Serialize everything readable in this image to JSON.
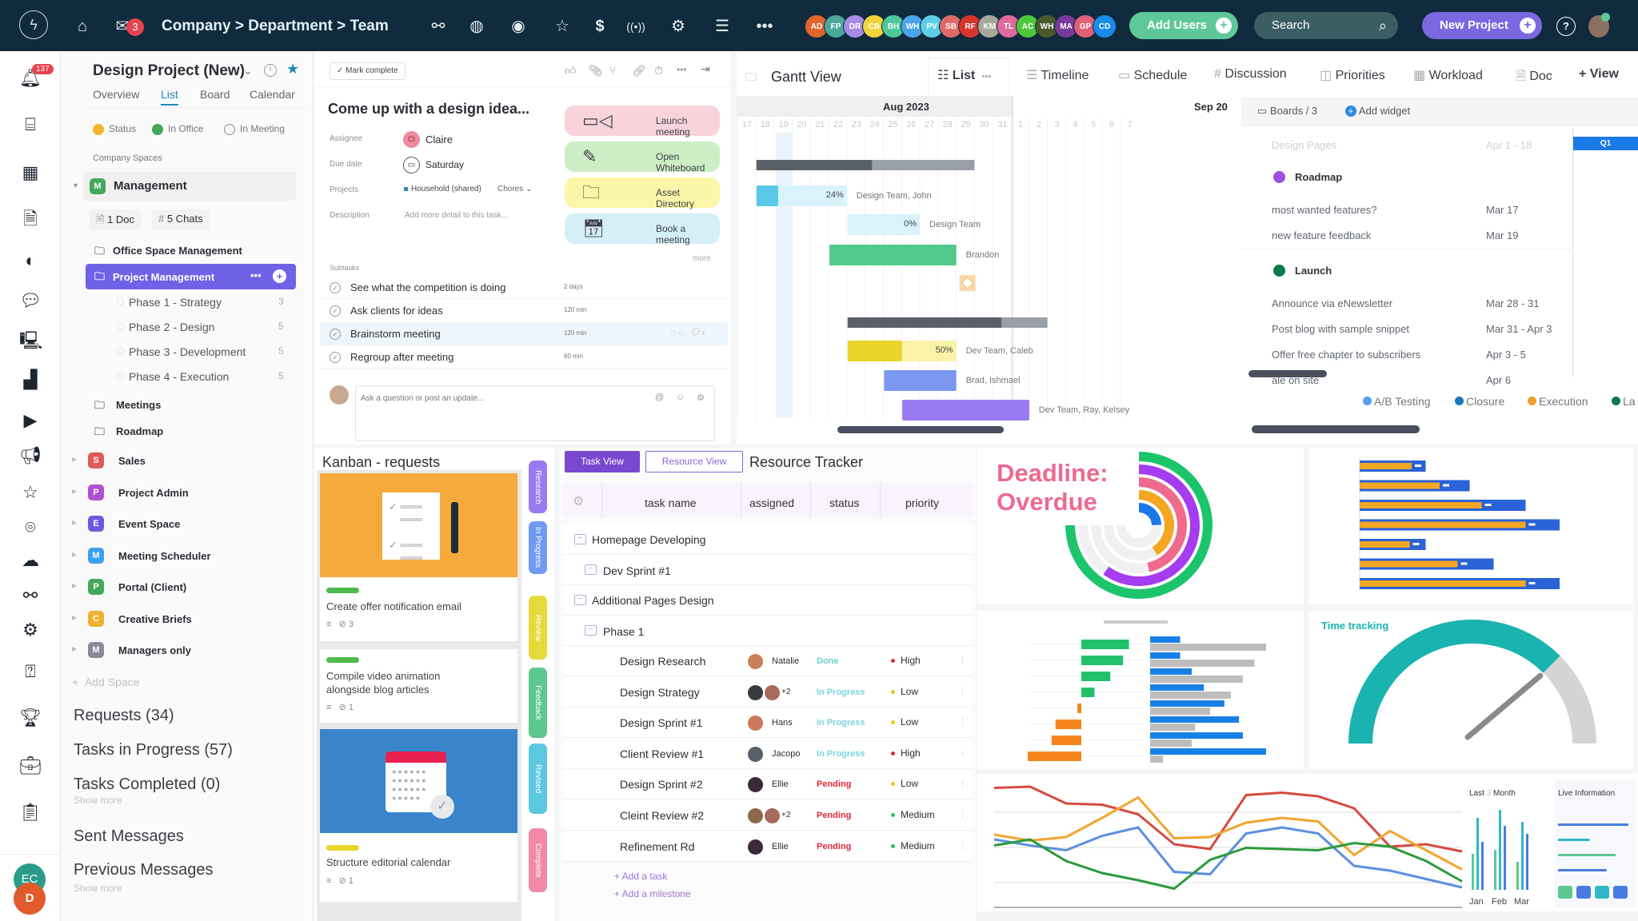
{
  "topbar": {
    "mail_badge": "3",
    "breadcrumb": [
      "Company",
      ">",
      "Department",
      ">",
      "Team"
    ],
    "icons": [
      "share-icon",
      "globe-icon",
      "eye-icon",
      "star-icon",
      "dollar-icon",
      "broadcast-icon",
      "gear-icon",
      "menu-icon",
      "more-icon"
    ],
    "avatars": [
      {
        "initials": "AD",
        "color": "#e0662e"
      },
      {
        "initials": "FP",
        "color": "#4aa99a"
      },
      {
        "initials": "DR",
        "color": "#a78be8"
      },
      {
        "initials": "CB",
        "color": "#f0d43a"
      },
      {
        "initials": "BH",
        "color": "#4cc89a"
      },
      {
        "initials": "WH",
        "color": "#4aa4e8"
      },
      {
        "initials": "PV",
        "color": "#5ccfe6"
      },
      {
        "initials": "SB",
        "color": "#e06a6a"
      },
      {
        "initials": "RF",
        "color": "#d8342c"
      },
      {
        "initials": "KM",
        "color": "#a8a89a"
      },
      {
        "initials": "TL",
        "color": "#e06a9a"
      },
      {
        "initials": "AC",
        "color": "#4ec83a"
      },
      {
        "initials": "WH",
        "color": "#4a5a2a"
      },
      {
        "initials": "MA",
        "color": "#7a3a9a"
      },
      {
        "initials": "GP",
        "color": "#e0607a"
      },
      {
        "initials": "CD",
        "color": "#1a8ae8"
      }
    ],
    "add_users": "Add Users",
    "search_placeholder": "Search",
    "new_project": "New Project",
    "help": "?"
  },
  "rail": {
    "notification_badge": "137",
    "user_initials": [
      "EC",
      "D"
    ]
  },
  "sidebar": {
    "project_title": "Design Project (New)",
    "tabs": [
      "Overview",
      "List",
      "Board",
      "Calendar"
    ],
    "active_tab": "List",
    "statuses": [
      {
        "label": "Status",
        "color": "#f5b52e"
      },
      {
        "label": "In Office",
        "color": "#43a85a"
      },
      {
        "label": "In Meeting",
        "color": "hollow"
      }
    ],
    "section_label": "Company Spaces",
    "management": {
      "badge": "M",
      "label": "Management",
      "doc_chip": "1 Doc",
      "chat_chip": "5 Chats"
    },
    "folders": [
      "Office Space Management",
      "Project Management"
    ],
    "phases": [
      {
        "label": "Phase 1 - Strategy",
        "count": "3"
      },
      {
        "label": "Phase 2 - Design",
        "count": "5"
      },
      {
        "label": "Phase 3 - Development",
        "count": "5"
      },
      {
        "label": "Phase 4 - Execution",
        "count": "5"
      }
    ],
    "folders2": [
      "Meetings",
      "Roadmap"
    ],
    "spaces": [
      {
        "badge": "S",
        "label": "Sales",
        "color": "#e05a5a"
      },
      {
        "badge": "P",
        "label": "Project Admin",
        "color": "#b050d0"
      },
      {
        "badge": "E",
        "label": "Event Space",
        "color": "#6a5ae0"
      },
      {
        "badge": "M",
        "label": "Meeting Scheduler",
        "color": "#3aa0f0"
      },
      {
        "badge": "P",
        "label": "Portal (Client)",
        "color": "#43a85a"
      },
      {
        "badge": "C",
        "label": "Creative Briefs",
        "color": "#f0b030"
      },
      {
        "badge": "M",
        "label": "Managers only",
        "color": "#8a8a94"
      }
    ],
    "add_space": "Add Space",
    "lists": [
      "Requests (34)",
      "Tasks in Progress (57)",
      "Tasks Completed (0)",
      "Sent Messages",
      "Previous Messages"
    ],
    "show_more": "Show more"
  },
  "task": {
    "mark_complete": "✓ Mark complete",
    "title": "Come up with a design idea...",
    "fields": {
      "assignee_label": "Assignee",
      "assignee_initials": "CI",
      "assignee": "Claire",
      "due_label": "Due date",
      "due": "Saturday",
      "projects_label": "Projects",
      "project": "Household (shared)",
      "project_section": "Chores",
      "description_label": "Description",
      "description_placeholder": "Add more detail to this task..."
    },
    "actions": [
      {
        "label": "Launch meeting",
        "icon": "video-icon",
        "color": "#f8d3dc"
      },
      {
        "label": "Open Whiteboard",
        "icon": "pen-icon",
        "color": "#cdeec4"
      },
      {
        "label": "Asset Directory",
        "icon": "folder-icon",
        "color": "#fbf5a8"
      },
      {
        "label": "Book a meeting",
        "icon": "calendar-icon",
        "color": "#d5eff9"
      }
    ],
    "more": "more",
    "subtasks_label": "Subtasks",
    "subtasks": [
      {
        "name": "See what the competition is doing",
        "duration": "2 days"
      },
      {
        "name": "Ask clients for ideas",
        "duration": "120 min"
      },
      {
        "name": "Brainstorm meeting",
        "duration": "120 min"
      },
      {
        "name": "Regroup after meeting",
        "duration": "60 min"
      }
    ],
    "comment_placeholder": "Ask a question or post an update..."
  },
  "views": {
    "title": "Gantt View",
    "tabs": [
      "List",
      "Timeline",
      "Schedule",
      "Discussion",
      "Priorities",
      "Workload",
      "Doc"
    ],
    "add_view": "+ View"
  },
  "gantt": {
    "months": [
      "Aug 2023",
      "Sep 20"
    ],
    "days": [
      "17",
      "18",
      "19",
      "20",
      "21",
      "22",
      "23",
      "24",
      "25",
      "26",
      "27",
      "28",
      "29",
      "30",
      "31",
      "1",
      "2",
      "3",
      "4",
      "5",
      "6",
      "7"
    ],
    "today": "19",
    "bars": [
      {
        "type": "group",
        "start": 1,
        "end": 12,
        "progress": 0.53
      },
      {
        "type": "task",
        "start": 1,
        "end": 5,
        "progress": 0.24,
        "label": "24%",
        "assignee": "Design Team, John",
        "color": "#5bc8e8",
        "light": "#d8f3fb"
      },
      {
        "type": "task",
        "start": 6,
        "end": 9,
        "progress": 0,
        "label": "0%",
        "assignee": "Design Team",
        "color": "#5bc8e8",
        "light": "#d8f3fb"
      },
      {
        "type": "task",
        "start": 5,
        "end": 11,
        "progress": 1,
        "label": "",
        "assignee": "Brandon",
        "color": "#52c98c",
        "light": "#52c98c"
      },
      {
        "type": "milestone",
        "start": 12,
        "end": 12
      },
      {
        "type": "group",
        "start": 6,
        "end": 16,
        "progress": 0.77
      },
      {
        "type": "task",
        "start": 6,
        "end": 11,
        "progress": 0.5,
        "label": "50%",
        "assignee": "Dev Team, Caleb",
        "color": "#e8d42a",
        "light": "#fbf3a8"
      },
      {
        "type": "task",
        "start": 8,
        "end": 11,
        "progress": 1,
        "label": "",
        "assignee": "Brad, Ishmael",
        "color": "#7a98f0",
        "light": "#7a98f0"
      },
      {
        "type": "task",
        "start": 9,
        "end": 15,
        "progress": 1,
        "label": "",
        "assignee": "Dev Team, Ray, Kelsey",
        "color": "#9a7af0",
        "light": "#9a7af0"
      }
    ]
  },
  "roadmap": {
    "boards": "Boards / 3",
    "add_widget": "Add widget",
    "faded": {
      "name": "Design Pages",
      "date": "Apr 1 - 18"
    },
    "quarter": "Q1",
    "groups": [
      {
        "name": "Roadmap",
        "color": "#a050e0",
        "items": [
          {
            "name": "most wanted features?",
            "date": "Mar 17"
          },
          {
            "name": "new feature feedback",
            "date": "Mar 19"
          }
        ]
      },
      {
        "name": "Launch",
        "color": "#0a7a4a",
        "items": [
          {
            "name": "Announce via eNewsletter",
            "date": "Mar 28 - 31"
          },
          {
            "name": "Post blog with sample snippet",
            "date": "Mar 31 - Apr 3"
          },
          {
            "name": "Offer free chapter to subscribers",
            "date": "Apr 3 - 5"
          },
          {
            "name": "ale on site",
            "date": "Apr 6"
          }
        ]
      }
    ],
    "legend": [
      {
        "label": "A/B Testing",
        "color": "#5b9bf0"
      },
      {
        "label": "Closure",
        "color": "#1a78c0"
      },
      {
        "label": "Execution",
        "color": "#f0a030"
      },
      {
        "label": "La",
        "color": "#0a7a4a"
      }
    ]
  },
  "kanban": {
    "title": "Kanban - requests",
    "cards": [
      {
        "title": "Create offer notification email",
        "attachments": "3",
        "tag": "#4cba4c"
      },
      {
        "title": "Compile video animation alongside blog articles",
        "attachments": "1",
        "tag": "#4cba4c"
      },
      {
        "title": "Structure editorial calendar",
        "attachments": "1",
        "tag": "#e8d42a"
      }
    ],
    "columns": [
      {
        "label": "Research",
        "color": "#9b7af0"
      },
      {
        "label": "In Progress",
        "color": "#6f9af0"
      },
      {
        "label": "Review",
        "color": "#e6da3a"
      },
      {
        "label": "Feedback",
        "color": "#5cc890"
      },
      {
        "label": "Revised",
        "color": "#5cc8e0"
      },
      {
        "label": "Complete",
        "color": "#f08aa8"
      }
    ]
  },
  "resource": {
    "task_view": "Task View",
    "resource_view": "Resource View",
    "title": "Resource Tracker",
    "columns": [
      "task name",
      "assigned",
      "status",
      "priority"
    ],
    "groups": [
      "Homepage Developing",
      "Dev Sprint #1",
      "Additional Pages Design",
      "Phase 1"
    ],
    "rows": [
      {
        "name": "Design Research",
        "assigned": "Natalie",
        "extra": "",
        "status": "Done",
        "status_color": "#6ad0c8",
        "priority": "High",
        "priority_color": "#e0283a"
      },
      {
        "name": "Design Strategy",
        "assigned": "",
        "extra": "+2",
        "status": "In Progress",
        "status_color": "#7ad4e0",
        "priority": "Low",
        "priority_color": "#f0c820"
      },
      {
        "name": "Design Sprint #1",
        "assigned": "Hans",
        "extra": "",
        "status": "In Progress",
        "status_color": "#7ad4e0",
        "priority": "Low",
        "priority_color": "#f0c820"
      },
      {
        "name": "Client Review #1",
        "assigned": "Jacopo",
        "extra": "",
        "status": "In Progress",
        "status_color": "#7ad4e0",
        "priority": "High",
        "priority_color": "#e0283a"
      },
      {
        "name": "Design Sprint #2",
        "assigned": "Ellie",
        "extra": "",
        "status": "Pending",
        "status_color": "#e0283a",
        "priority": "Low",
        "priority_color": "#f0c820"
      },
      {
        "name": "Cleint Review #2",
        "assigned": "",
        "extra": "+2",
        "status": "Pending",
        "status_color": "#e0283a",
        "priority": "Medium",
        "priority_color": "#30c060"
      },
      {
        "name": "Refinement Rd",
        "assigned": "Ellie",
        "extra": "",
        "status": "Pending",
        "status_color": "#e0283a",
        "priority": "Medium",
        "priority_color": "#30c060"
      }
    ],
    "add_task": "+ Add a task",
    "add_milestone": "+ Add a milestone"
  },
  "chart_data": [
    {
      "type": "radial-bar",
      "title": "Deadline: Overdue",
      "max": 1,
      "values": [
        0.33,
        0.55,
        0.62,
        0.8,
        1.0
      ],
      "colors": [
        "#1a78e8",
        "#f5a623",
        "#f06a8e",
        "#a53cf0",
        "#1cc46c"
      ]
    },
    {
      "type": "bullet",
      "categories": 7,
      "target": [
        33,
        55,
        83,
        100,
        33,
        67,
        100
      ],
      "values": [
        26,
        40,
        61,
        83,
        25,
        49,
        83
      ],
      "colors": {
        "range": "#2a62d8",
        "value": "#f5a623"
      }
    },
    {
      "type": "bar",
      "layout": "diverging",
      "left": [
        120,
        105,
        73,
        33,
        -10,
        -65,
        -75,
        -135
      ],
      "right_blue": [
        70,
        70,
        97,
        125,
        173,
        207,
        216,
        270
      ],
      "right_gray": [
        270,
        243,
        216,
        188,
        140,
        105,
        97,
        30
      ]
    },
    {
      "type": "gauge",
      "title": "Time tracking",
      "value": 0.75,
      "color": "#19b3b0"
    },
    {
      "type": "line",
      "ylim": [
        0,
        100
      ],
      "series": [
        {
          "color": "#d64a3e",
          "values": [
            93,
            94,
            80,
            79,
            71,
            46,
            42,
            87,
            89,
            86,
            76,
            44,
            46,
            40
          ]
        },
        {
          "color": "#f2a530",
          "values": [
            54,
            49,
            52,
            68,
            85,
            51,
            52,
            64,
            68,
            65,
            37,
            57,
            41,
            25
          ]
        },
        {
          "color": "#5b8fe0",
          "values": [
            50,
            45,
            41,
            53,
            60,
            23,
            21,
            55,
            60,
            55,
            28,
            24,
            17,
            10
          ]
        },
        {
          "color": "#2a9a3a",
          "values": [
            45,
            50,
            32,
            22,
            16,
            9,
            33,
            43,
            42,
            41,
            47,
            44,
            32,
            15
          ]
        }
      ]
    },
    {
      "type": "bar",
      "title": [
        "Last ",
        "3",
        " Month"
      ],
      "categories": [
        "Jan",
        "Feb",
        "Mar"
      ],
      "series": [
        {
          "color": "#5cc890",
          "values": [
            0.45,
            0.5,
            0.35
          ]
        },
        {
          "color": "#30b8c8",
          "values": [
            0.9,
            1.0,
            0.85
          ]
        },
        {
          "color": "#4a7ae0",
          "values": [
            0.6,
            0.8,
            0.7
          ]
        }
      ]
    },
    {
      "type": "bar",
      "title": "Live Information",
      "orientation": "horizontal",
      "values": [
        1.0,
        0.45,
        0.82,
        0.69
      ],
      "colors": [
        "#4a7ae0",
        "#30b8c8",
        "#5cc890",
        "#4a7ae0"
      ],
      "tiles": [
        "#5cc890",
        "#4a7ae0",
        "#30b8c8",
        "#4a7ae0"
      ]
    }
  ]
}
